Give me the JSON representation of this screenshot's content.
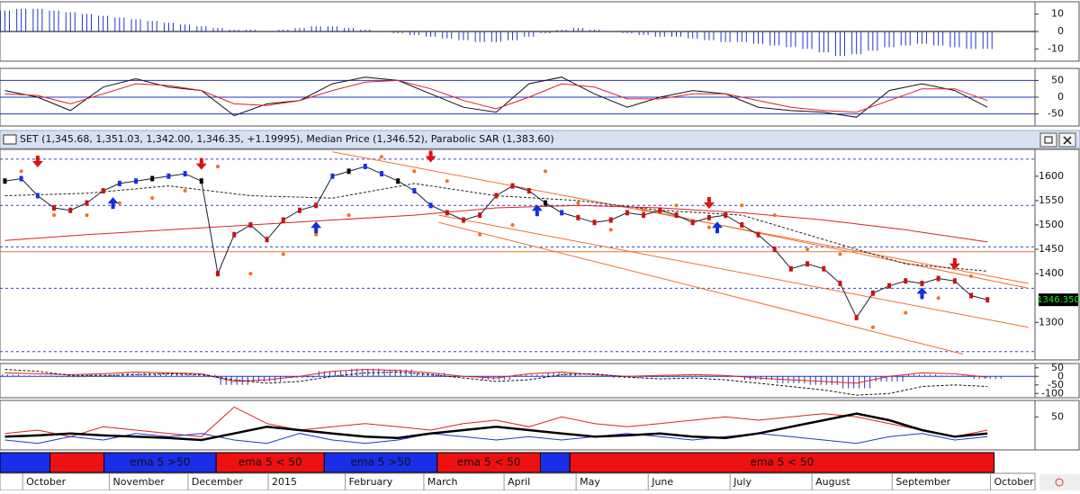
{
  "xlim": [
    -0.3,
    62.9
  ],
  "header": "SET (1,345.68, 1,351.03, 1,342.00, 1,346.35, +1.19995), Median Price (1,346.52), Parabolic SAR (1,383.60)",
  "momentum": {
    "ylim": [
      -17,
      17
    ],
    "yticks": [
      10,
      0,
      -10
    ],
    "color": "#2233cc",
    "values": [
      12,
      13,
      13,
      12,
      11,
      10,
      9,
      8,
      7,
      6,
      5,
      4,
      3,
      2,
      1,
      1,
      0,
      1,
      2,
      3,
      3,
      2,
      1,
      0,
      -1,
      -2,
      -3,
      -4,
      -5,
      -6,
      -6,
      -5,
      -3,
      -1,
      1,
      2,
      1,
      0,
      -1,
      -2,
      -3,
      -3,
      -4,
      -5,
      -6,
      -6,
      -7,
      -8,
      -9,
      -10,
      -12,
      -14,
      -13,
      -11,
      -9,
      -8,
      -7,
      -8,
      -9,
      -10,
      -10
    ]
  },
  "oscillator": {
    "ylim": [
      -86,
      86
    ],
    "yticks": [
      50,
      0,
      -50
    ],
    "levels": [
      50,
      0,
      -50
    ],
    "x": [
      0,
      2,
      4,
      6,
      8,
      10,
      12,
      14,
      16,
      18,
      20,
      22,
      24,
      26,
      28,
      30,
      32,
      34,
      36,
      38,
      40,
      42,
      44,
      46,
      48,
      50,
      52,
      54,
      56,
      58,
      60
    ],
    "series": [
      {
        "color": "#111111",
        "values": [
          20,
          0,
          -40,
          30,
          55,
          30,
          20,
          -55,
          -20,
          -10,
          40,
          60,
          50,
          10,
          -30,
          -45,
          40,
          60,
          10,
          -30,
          0,
          20,
          10,
          -30,
          -40,
          -45,
          -60,
          20,
          40,
          20,
          -30
        ]
      },
      {
        "color": "#e02020",
        "values": [
          10,
          5,
          -20,
          10,
          40,
          35,
          20,
          -20,
          -25,
          -10,
          20,
          45,
          50,
          25,
          -10,
          -35,
          0,
          40,
          30,
          -5,
          -5,
          10,
          10,
          -10,
          -30,
          -40,
          -45,
          -10,
          25,
          25,
          -10
        ]
      }
    ]
  },
  "price": {
    "ylim": [
      1223,
      1655
    ],
    "yticks": [
      1600,
      1550,
      1500,
      1450,
      1400,
      1300
    ],
    "last": {
      "value": 1346.35,
      "label": "1346.350"
    },
    "closes": [
      1590,
      1595,
      1560,
      1535,
      1530,
      1545,
      1570,
      1585,
      1590,
      1595,
      1600,
      1605,
      1590,
      1400,
      1480,
      1500,
      1470,
      1510,
      1530,
      1540,
      1600,
      1610,
      1620,
      1605,
      1590,
      1570,
      1540,
      1525,
      1510,
      1520,
      1560,
      1580,
      1570,
      1545,
      1525,
      1515,
      1505,
      1510,
      1525,
      1520,
      1530,
      1520,
      1505,
      1515,
      1520,
      1500,
      1480,
      1450,
      1410,
      1420,
      1410,
      1380,
      1310,
      1360,
      1375,
      1385,
      1380,
      1390,
      1385,
      1355,
      1346.35
    ],
    "hlines": [
      {
        "value": 1635,
        "color": "#3344cc",
        "dash": true
      },
      {
        "value": 1540,
        "color": "#3344cc",
        "dash": true
      },
      {
        "value": 1455,
        "color": "#3344cc",
        "dash": true
      },
      {
        "value": 1370,
        "color": "#3344cc",
        "dash": true
      },
      {
        "value": 1240,
        "color": "#3344cc",
        "dash": true
      },
      {
        "value": 1445,
        "color": "#f07030",
        "dash": false
      }
    ],
    "averages": [
      {
        "color": "#dd2222",
        "dash": false,
        "x": [
          0,
          5,
          10,
          15,
          20,
          25,
          30,
          35,
          40,
          45,
          50,
          55,
          60
        ],
        "values": [
          1468,
          1480,
          1490,
          1500,
          1510,
          1520,
          1535,
          1540,
          1535,
          1525,
          1510,
          1490,
          1465
        ]
      },
      {
        "color": "#222222",
        "dash": true,
        "x": [
          0,
          5,
          10,
          15,
          20,
          25,
          30,
          35,
          40,
          45,
          50,
          55,
          60
        ],
        "values": [
          1560,
          1565,
          1580,
          1560,
          1555,
          1585,
          1560,
          1550,
          1530,
          1520,
          1470,
          1420,
          1405
        ]
      }
    ],
    "trendlines": [
      {
        "color": "#f07030",
        "points": [
          [
            20,
            1650
          ],
          [
            62.5,
            1380
          ]
        ]
      },
      {
        "color": "#f07030",
        "points": [
          [
            26.5,
            1520
          ],
          [
            62.5,
            1290
          ]
        ]
      },
      {
        "color": "#f07030",
        "points": [
          [
            38.5,
            1535
          ],
          [
            62.5,
            1370
          ]
        ]
      },
      {
        "color": "#f07030",
        "points": [
          [
            26.5,
            1505
          ],
          [
            58.5,
            1235
          ]
        ]
      }
    ],
    "sar": {
      "color": "#f07020",
      "x": [
        1,
        3,
        5,
        7,
        9,
        11,
        13,
        15,
        17,
        19,
        21,
        23,
        25,
        27,
        29,
        31,
        33,
        35,
        37,
        39,
        41,
        43,
        45,
        47,
        49,
        51,
        53,
        55,
        57,
        59
      ],
      "values": [
        1610,
        1520,
        1520,
        1545,
        1555,
        1570,
        1620,
        1400,
        1440,
        1480,
        1520,
        1640,
        1610,
        1590,
        1480,
        1500,
        1610,
        1545,
        1490,
        1530,
        1540,
        1495,
        1540,
        1520,
        1450,
        1440,
        1290,
        1320,
        1350,
        1395
      ]
    },
    "sell": {
      "color": "#e01010",
      "x": [
        2,
        12,
        26,
        43,
        58
      ],
      "values": [
        1620,
        1615,
        1630,
        1535,
        1410
      ]
    },
    "buy": {
      "color": "#1030e0",
      "x": [
        6.6,
        19,
        32.5,
        43.5,
        56
      ],
      "values": [
        1555,
        1505,
        1540,
        1505,
        1370
      ]
    }
  },
  "macd": {
    "ylim": [
      -125,
      75
    ],
    "yticks": [
      50,
      0,
      -50,
      -100
    ],
    "x": [
      0,
      2,
      4,
      6,
      8,
      10,
      12,
      14,
      16,
      18,
      20,
      22,
      24,
      26,
      28,
      30,
      32,
      34,
      36,
      38,
      40,
      42,
      44,
      46,
      48,
      50,
      52,
      54,
      56,
      58,
      60
    ],
    "histogram": {
      "color": "#2233cc",
      "values": [
        10,
        5,
        -5,
        10,
        20,
        15,
        10,
        -50,
        -30,
        -10,
        30,
        45,
        40,
        20,
        0,
        -20,
        10,
        20,
        5,
        -10,
        -5,
        5,
        0,
        -20,
        -40,
        -50,
        -70,
        -30,
        10,
        5,
        -15
      ]
    },
    "signal": {
      "color": "#e02020",
      "values": [
        20,
        15,
        10,
        15,
        25,
        20,
        15,
        -30,
        -20,
        0,
        30,
        40,
        35,
        20,
        0,
        -10,
        15,
        25,
        10,
        0,
        5,
        10,
        5,
        -10,
        -20,
        -30,
        -40,
        0,
        20,
        15,
        -5
      ]
    },
    "slow": {
      "color": "#111111",
      "values": [
        40,
        30,
        5,
        5,
        10,
        15,
        10,
        -20,
        -40,
        -30,
        0,
        20,
        25,
        10,
        -10,
        -30,
        -20,
        10,
        15,
        -5,
        -15,
        -10,
        -20,
        -40,
        -60,
        -80,
        -110,
        -100,
        -60,
        -50,
        -60
      ]
    }
  },
  "dmi": {
    "ylim": [
      0,
      75
    ],
    "yticks": [
      50
    ],
    "x": [
      0,
      2,
      4,
      6,
      8,
      10,
      12,
      14,
      16,
      18,
      20,
      22,
      24,
      26,
      28,
      30,
      32,
      34,
      36,
      38,
      40,
      42,
      44,
      46,
      48,
      50,
      52,
      54,
      56,
      58,
      60
    ],
    "series": [
      {
        "color": "#e02020",
        "width": 1,
        "values": [
          25,
          30,
          20,
          35,
          30,
          25,
          20,
          65,
          40,
          30,
          35,
          40,
          35,
          30,
          40,
          45,
          35,
          50,
          40,
          35,
          40,
          45,
          50,
          45,
          50,
          55,
          50,
          40,
          30,
          20,
          30
        ]
      },
      {
        "color": "#2233dd",
        "width": 1,
        "values": [
          15,
          10,
          20,
          15,
          25,
          20,
          25,
          15,
          10,
          25,
          15,
          10,
          15,
          25,
          20,
          15,
          20,
          15,
          20,
          25,
          20,
          15,
          20,
          25,
          20,
          15,
          10,
          20,
          25,
          15,
          20
        ]
      },
      {
        "color": "#000000",
        "width": 2.5,
        "values": [
          20,
          22,
          25,
          22,
          20,
          18,
          15,
          25,
          35,
          30,
          25,
          20,
          18,
          25,
          30,
          35,
          30,
          25,
          20,
          22,
          25,
          20,
          18,
          25,
          35,
          45,
          55,
          45,
          30,
          20,
          25
        ]
      }
    ]
  },
  "bands": [
    {
      "start": -0.3,
      "end": 2.75,
      "color": "#1a2ee8"
    },
    {
      "start": 2.75,
      "end": 6.05,
      "color": "#ee1111"
    },
    {
      "start": 6.05,
      "end": 12.9,
      "color": "#1a2ee8",
      "label": "ema 5 >50"
    },
    {
      "start": 12.9,
      "end": 19.5,
      "color": "#ee1111",
      "label": "ema 5 < 50"
    },
    {
      "start": 19.5,
      "end": 26.4,
      "color": "#1a2ee8",
      "label": "ema 5 >50"
    },
    {
      "start": 26.4,
      "end": 32.7,
      "color": "#ee1111",
      "label": "ema 5 < 50"
    },
    {
      "start": 32.7,
      "end": 34.5,
      "color": "#1a2ee8"
    },
    {
      "start": 34.5,
      "end": 60.4,
      "color": "#ee1111",
      "label": "ema 5 < 50"
    }
  ],
  "months": [
    {
      "label": "October",
      "at": 1.3
    },
    {
      "label": "November",
      "at": 6.6
    },
    {
      "label": "December",
      "at": 11.4
    },
    {
      "label": "2015",
      "at": 16.3
    },
    {
      "label": "February",
      "at": 21
    },
    {
      "label": "March",
      "at": 25.8
    },
    {
      "label": "April",
      "at": 30.7
    },
    {
      "label": "May",
      "at": 35.1
    },
    {
      "label": "June",
      "at": 39.5
    },
    {
      "label": "July",
      "at": 44.5
    },
    {
      "label": "August",
      "at": 49.5
    },
    {
      "label": "September",
      "at": 54.4
    },
    {
      "label": "October",
      "at": 60.4
    }
  ]
}
